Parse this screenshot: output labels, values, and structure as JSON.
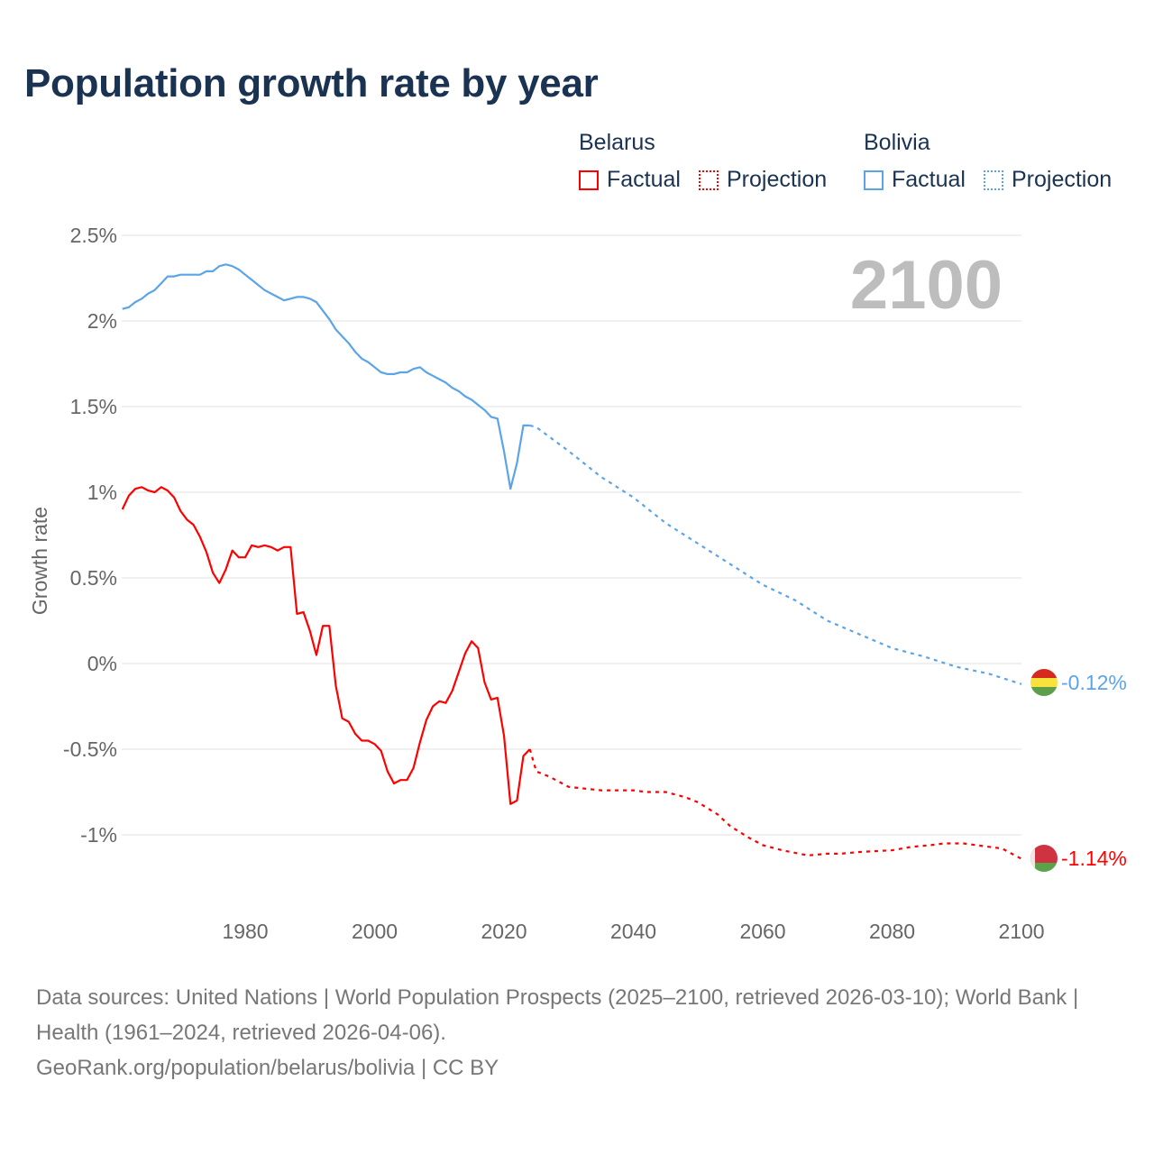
{
  "chart_data": {
    "type": "line",
    "title": "Population growth rate by year",
    "ylabel": "Growth rate",
    "xlabel": "",
    "year_label": "2100",
    "xlim": [
      1961,
      2100
    ],
    "ylim": [
      -1.35,
      2.6
    ],
    "x_ticks": [
      1980,
      2000,
      2020,
      2040,
      2060,
      2080,
      2100
    ],
    "y_ticks": [
      {
        "value": 2.5,
        "label": "2.5%"
      },
      {
        "value": 2,
        "label": "2%"
      },
      {
        "value": 1.5,
        "label": "1.5%"
      },
      {
        "value": 1,
        "label": "1%"
      },
      {
        "value": 0.5,
        "label": "0.5%"
      },
      {
        "value": 0,
        "label": "0%"
      },
      {
        "value": -0.5,
        "label": "-0.5%"
      },
      {
        "value": -1,
        "label": "-1%"
      }
    ],
    "grid": true,
    "legend_position": "top-right",
    "legend": {
      "groups": [
        {
          "name": "Belarus",
          "color": "#ff0000",
          "factual": "Factual",
          "projection": "Projection"
        },
        {
          "name": "Bolivia",
          "color": "#5ba4e8",
          "factual": "Factual",
          "projection": "Projection"
        }
      ]
    },
    "series": [
      {
        "name": "Belarus",
        "color": "#ff0000",
        "end_label": "-1.14%",
        "flag": "belarus-flag",
        "factual": {
          "x": [
            1961,
            1962,
            1963,
            1964,
            1965,
            1966,
            1967,
            1968,
            1969,
            1970,
            1971,
            1972,
            1973,
            1974,
            1975,
            1976,
            1977,
            1978,
            1979,
            1980,
            1981,
            1982,
            1983,
            1984,
            1985,
            1986,
            1987,
            1988,
            1989,
            1990,
            1991,
            1992,
            1993,
            1994,
            1995,
            1996,
            1997,
            1998,
            1999,
            2000,
            2001,
            2002,
            2003,
            2004,
            2005,
            2006,
            2007,
            2008,
            2009,
            2010,
            2011,
            2012,
            2013,
            2014,
            2015,
            2016,
            2017,
            2018,
            2019,
            2020,
            2021,
            2022,
            2023,
            2024
          ],
          "y": [
            0.9,
            0.98,
            1.02,
            1.03,
            1.01,
            1.0,
            1.03,
            1.01,
            0.97,
            0.89,
            0.84,
            0.81,
            0.74,
            0.65,
            0.53,
            0.47,
            0.55,
            0.66,
            0.62,
            0.62,
            0.69,
            0.68,
            0.69,
            0.68,
            0.66,
            0.68,
            0.68,
            0.29,
            0.3,
            0.19,
            0.05,
            0.22,
            0.22,
            -0.13,
            -0.32,
            -0.34,
            -0.41,
            -0.45,
            -0.45,
            -0.47,
            -0.51,
            -0.63,
            -0.7,
            -0.68,
            -0.68,
            -0.61,
            -0.46,
            -0.33,
            -0.25,
            -0.22,
            -0.23,
            -0.16,
            -0.05,
            0.06,
            0.13,
            0.09,
            -0.11,
            -0.21,
            -0.2,
            -0.42,
            -0.82,
            -0.8,
            -0.54,
            -0.5
          ]
        },
        "projection": {
          "x": [
            2024,
            2025,
            2027,
            2030,
            2035,
            2040,
            2042,
            2045,
            2048,
            2050,
            2053,
            2055,
            2058,
            2060,
            2063,
            2067,
            2070,
            2072,
            2075,
            2080,
            2083,
            2086,
            2088,
            2091,
            2093,
            2095,
            2097,
            2100
          ],
          "y": [
            -0.5,
            -0.63,
            -0.66,
            -0.72,
            -0.74,
            -0.74,
            -0.75,
            -0.75,
            -0.78,
            -0.81,
            -0.88,
            -0.95,
            -1.02,
            -1.06,
            -1.09,
            -1.12,
            -1.11,
            -1.11,
            -1.1,
            -1.09,
            -1.07,
            -1.06,
            -1.05,
            -1.05,
            -1.06,
            -1.07,
            -1.08,
            -1.14
          ]
        }
      },
      {
        "name": "Bolivia",
        "color": "#5ba4e8",
        "end_label": "-0.12%",
        "flag": "bolivia-flag",
        "factual": {
          "x": [
            1961,
            1962,
            1963,
            1964,
            1965,
            1966,
            1967,
            1968,
            1969,
            1970,
            1971,
            1972,
            1973,
            1974,
            1975,
            1976,
            1977,
            1978,
            1979,
            1980,
            1981,
            1982,
            1983,
            1984,
            1985,
            1986,
            1987,
            1988,
            1989,
            1990,
            1991,
            1992,
            1993,
            1994,
            1995,
            1996,
            1997,
            1998,
            1999,
            2000,
            2001,
            2002,
            2003,
            2004,
            2005,
            2006,
            2007,
            2008,
            2009,
            2010,
            2011,
            2012,
            2013,
            2014,
            2015,
            2016,
            2017,
            2018,
            2019,
            2020,
            2021,
            2022,
            2023,
            2024
          ],
          "y": [
            2.07,
            2.08,
            2.11,
            2.13,
            2.16,
            2.18,
            2.22,
            2.26,
            2.26,
            2.27,
            2.27,
            2.27,
            2.27,
            2.29,
            2.29,
            2.32,
            2.33,
            2.32,
            2.3,
            2.27,
            2.24,
            2.21,
            2.18,
            2.16,
            2.14,
            2.12,
            2.13,
            2.14,
            2.14,
            2.13,
            2.11,
            2.06,
            2.01,
            1.95,
            1.91,
            1.87,
            1.82,
            1.78,
            1.76,
            1.73,
            1.7,
            1.69,
            1.69,
            1.7,
            1.7,
            1.72,
            1.73,
            1.7,
            1.68,
            1.66,
            1.64,
            1.61,
            1.59,
            1.56,
            1.54,
            1.51,
            1.48,
            1.44,
            1.43,
            1.24,
            1.02,
            1.17,
            1.39,
            1.39
          ]
        },
        "projection": {
          "x": [
            2024,
            2025,
            2030,
            2035,
            2040,
            2045,
            2050,
            2055,
            2060,
            2065,
            2070,
            2075,
            2080,
            2085,
            2090,
            2095,
            2100
          ],
          "y": [
            1.39,
            1.38,
            1.24,
            1.09,
            0.97,
            0.82,
            0.7,
            0.58,
            0.46,
            0.37,
            0.25,
            0.17,
            0.09,
            0.04,
            -0.02,
            -0.06,
            -0.12
          ]
        }
      }
    ]
  },
  "footer": {
    "sources": "Data sources: United Nations | World Population Prospects (2025–2100, retrieved 2026-03-10); World Bank | Health (1961–2024, retrieved 2026-04-06).",
    "credit": "GeoRank.org/population/belarus/bolivia | CC BY"
  }
}
